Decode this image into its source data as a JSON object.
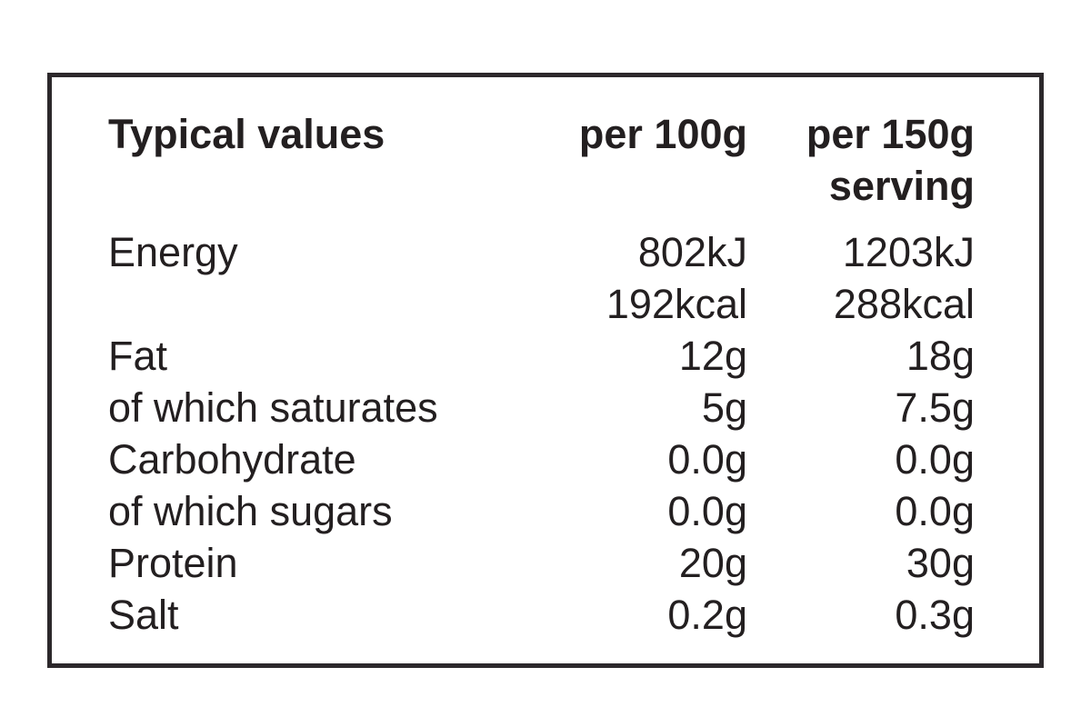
{
  "label": {
    "colors": {
      "background": "#ffffff",
      "border": "#2c282b",
      "text": "#231f20"
    },
    "header": {
      "col_label": "Typical values",
      "col_per100": "per 100g",
      "col_serving_line1": "per 150g",
      "col_serving_line2": "serving"
    },
    "rows": [
      {
        "name": "Energy",
        "indent": false,
        "per100": "802kJ",
        "serving": "1203kJ"
      },
      {
        "name": "",
        "indent": false,
        "per100": "192kcal",
        "serving": "288kcal"
      },
      {
        "name": "Fat",
        "indent": false,
        "per100": "12g",
        "serving": "18g"
      },
      {
        "name": "of which saturates",
        "indent": true,
        "per100": "5g",
        "serving": "7.5g"
      },
      {
        "name": "Carbohydrate",
        "indent": false,
        "per100": "0.0g",
        "serving": "0.0g"
      },
      {
        "name": "of which sugars",
        "indent": true,
        "per100": "0.0g",
        "serving": "0.0g"
      },
      {
        "name": "Protein",
        "indent": false,
        "per100": "20g",
        "serving": "30g"
      },
      {
        "name": "Salt",
        "indent": false,
        "per100": "0.2g",
        "serving": "0.3g"
      }
    ]
  }
}
